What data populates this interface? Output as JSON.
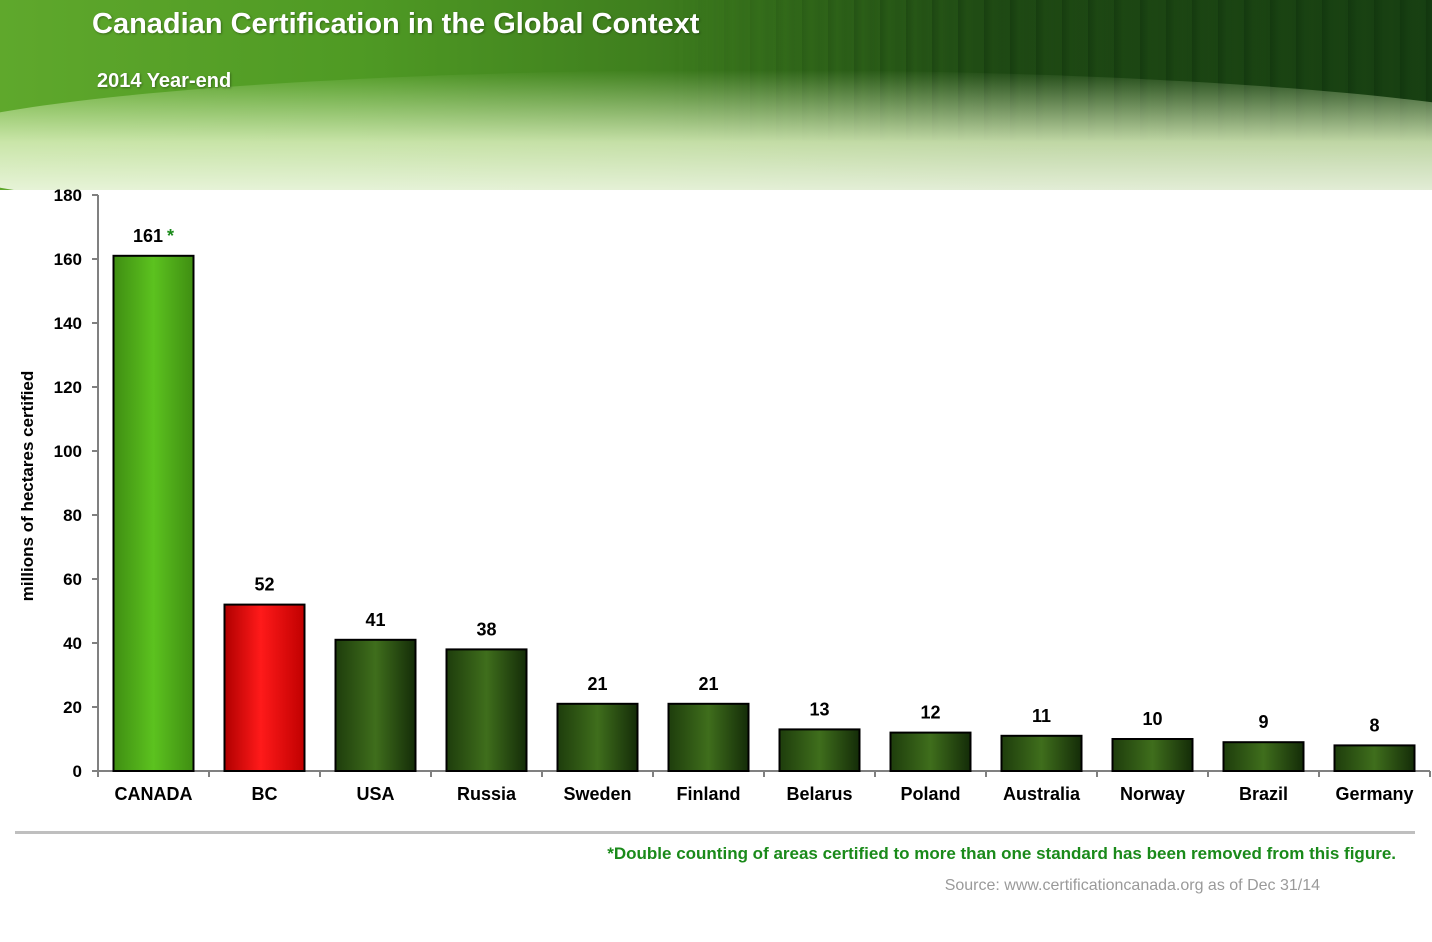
{
  "header": {
    "title": "Canadian Certification in the Global Context",
    "subtitle": "2014 Year-end"
  },
  "chart_data": {
    "type": "bar",
    "title": "Canadian Certification in the Global Context",
    "subtitle": "2014 Year-end",
    "xlabel": "",
    "ylabel": "millions of hectares certified",
    "ylim": [
      0,
      180
    ],
    "yticks": [
      0,
      20,
      40,
      60,
      80,
      100,
      120,
      140,
      160,
      180
    ],
    "grid": false,
    "categories": [
      "CANADA",
      "BC",
      "USA",
      "Russia",
      "Sweden",
      "Finland",
      "Belarus",
      "Poland",
      "Australia",
      "Norway",
      "Brazil",
      "Germany"
    ],
    "values": [
      161,
      52,
      41,
      38,
      21,
      21,
      13,
      12,
      11,
      10,
      9,
      8
    ],
    "data_labels": [
      "161",
      "52",
      "41",
      "38",
      "21",
      "21",
      "13",
      "12",
      "11",
      "10",
      "9",
      "8"
    ],
    "annotation_marker": "*",
    "bar_colors": [
      "#4ea81a",
      "#e00000",
      "#2f5a14",
      "#2f5a14",
      "#2f5a14",
      "#2f5a14",
      "#2f5a14",
      "#2f5a14",
      "#2f5a14",
      "#2f5a14",
      "#2f5a14",
      "#2f5a14"
    ]
  },
  "footer": {
    "footnote": "*Double counting of areas certified to more than one standard has been removed from this figure.",
    "source": "Source:  www.certificationcanada.org as of Dec 31/14"
  },
  "colors": {
    "accent_green": "#1a8a1a",
    "highlight_red": "#e00000",
    "axis": "#808080",
    "text": "#000000"
  }
}
